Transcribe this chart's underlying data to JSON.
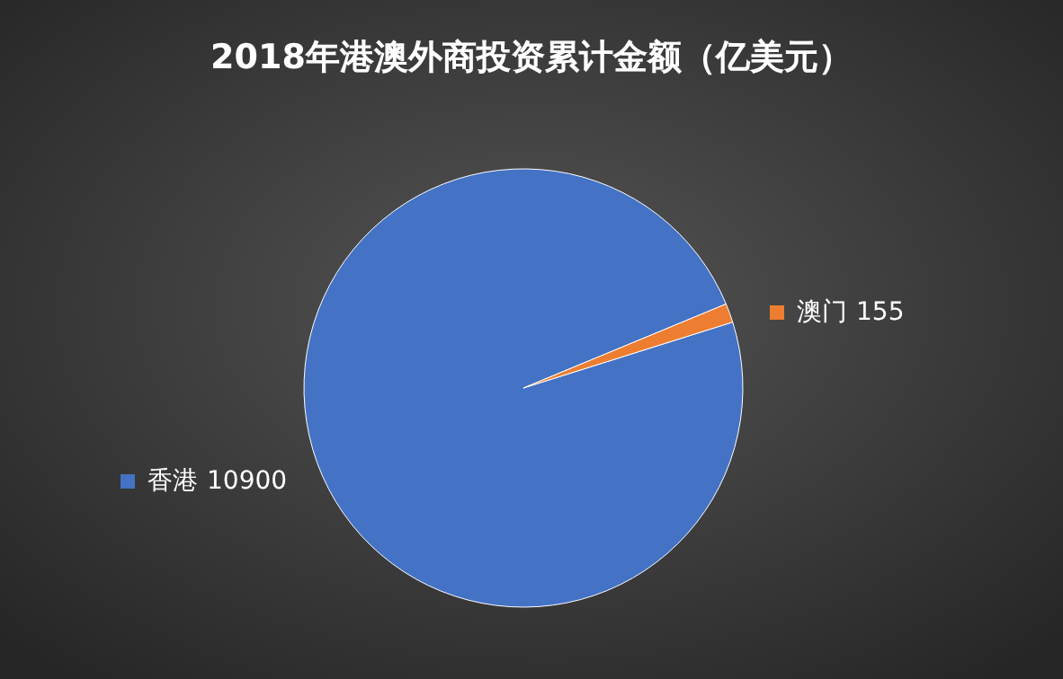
{
  "chart_data": {
    "type": "pie",
    "title": "2018年港澳外商投资累计金额（亿美元）",
    "categories": [
      "香港",
      "澳门"
    ],
    "values": [
      10900,
      155
    ],
    "colors": [
      "#4472c4",
      "#ed7d31"
    ],
    "data_labels": true
  }
}
